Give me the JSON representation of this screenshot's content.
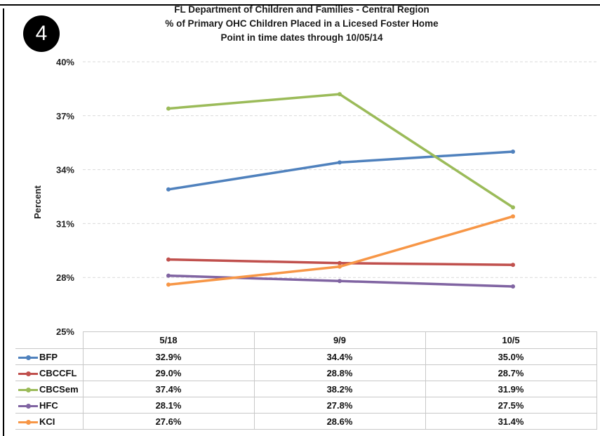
{
  "badge": "4",
  "chart_data": {
    "type": "line",
    "title_lines": [
      "FL Department of Children and Families - Central Region",
      "% of Primary OHC Children Placed in a Licesed Foster Home",
      "Point in time dates through 10/05/14"
    ],
    "ylabel": "Percent",
    "xlabel": "",
    "ylim": [
      25,
      40
    ],
    "yticks": [
      "25%",
      "28%",
      "31%",
      "34%",
      "37%",
      "40%"
    ],
    "ytick_values": [
      25,
      28,
      31,
      34,
      37,
      40
    ],
    "categories": [
      "5/18",
      "9/9",
      "10/5"
    ],
    "grid": true,
    "legend": "data table below chart",
    "series": [
      {
        "name": "BFP",
        "color": "#4f81bd",
        "values": [
          32.9,
          34.4,
          35.0
        ],
        "labels": [
          "32.9%",
          "34.4%",
          "35.0%"
        ]
      },
      {
        "name": "CBCCFL",
        "color": "#c0504d",
        "values": [
          29.0,
          28.8,
          28.7
        ],
        "labels": [
          "29.0%",
          "28.8%",
          "28.7%"
        ]
      },
      {
        "name": "CBCSem",
        "color": "#9bbb59",
        "values": [
          37.4,
          38.2,
          31.9
        ],
        "labels": [
          "37.4%",
          "38.2%",
          "31.9%"
        ]
      },
      {
        "name": "HFC",
        "color": "#8064a2",
        "values": [
          28.1,
          27.8,
          27.5
        ],
        "labels": [
          "28.1%",
          "27.8%",
          "27.5%"
        ]
      },
      {
        "name": "KCI",
        "color": "#f79646",
        "values": [
          27.6,
          28.6,
          31.4
        ],
        "labels": [
          "27.6%",
          "28.6%",
          "31.4%"
        ]
      }
    ]
  }
}
